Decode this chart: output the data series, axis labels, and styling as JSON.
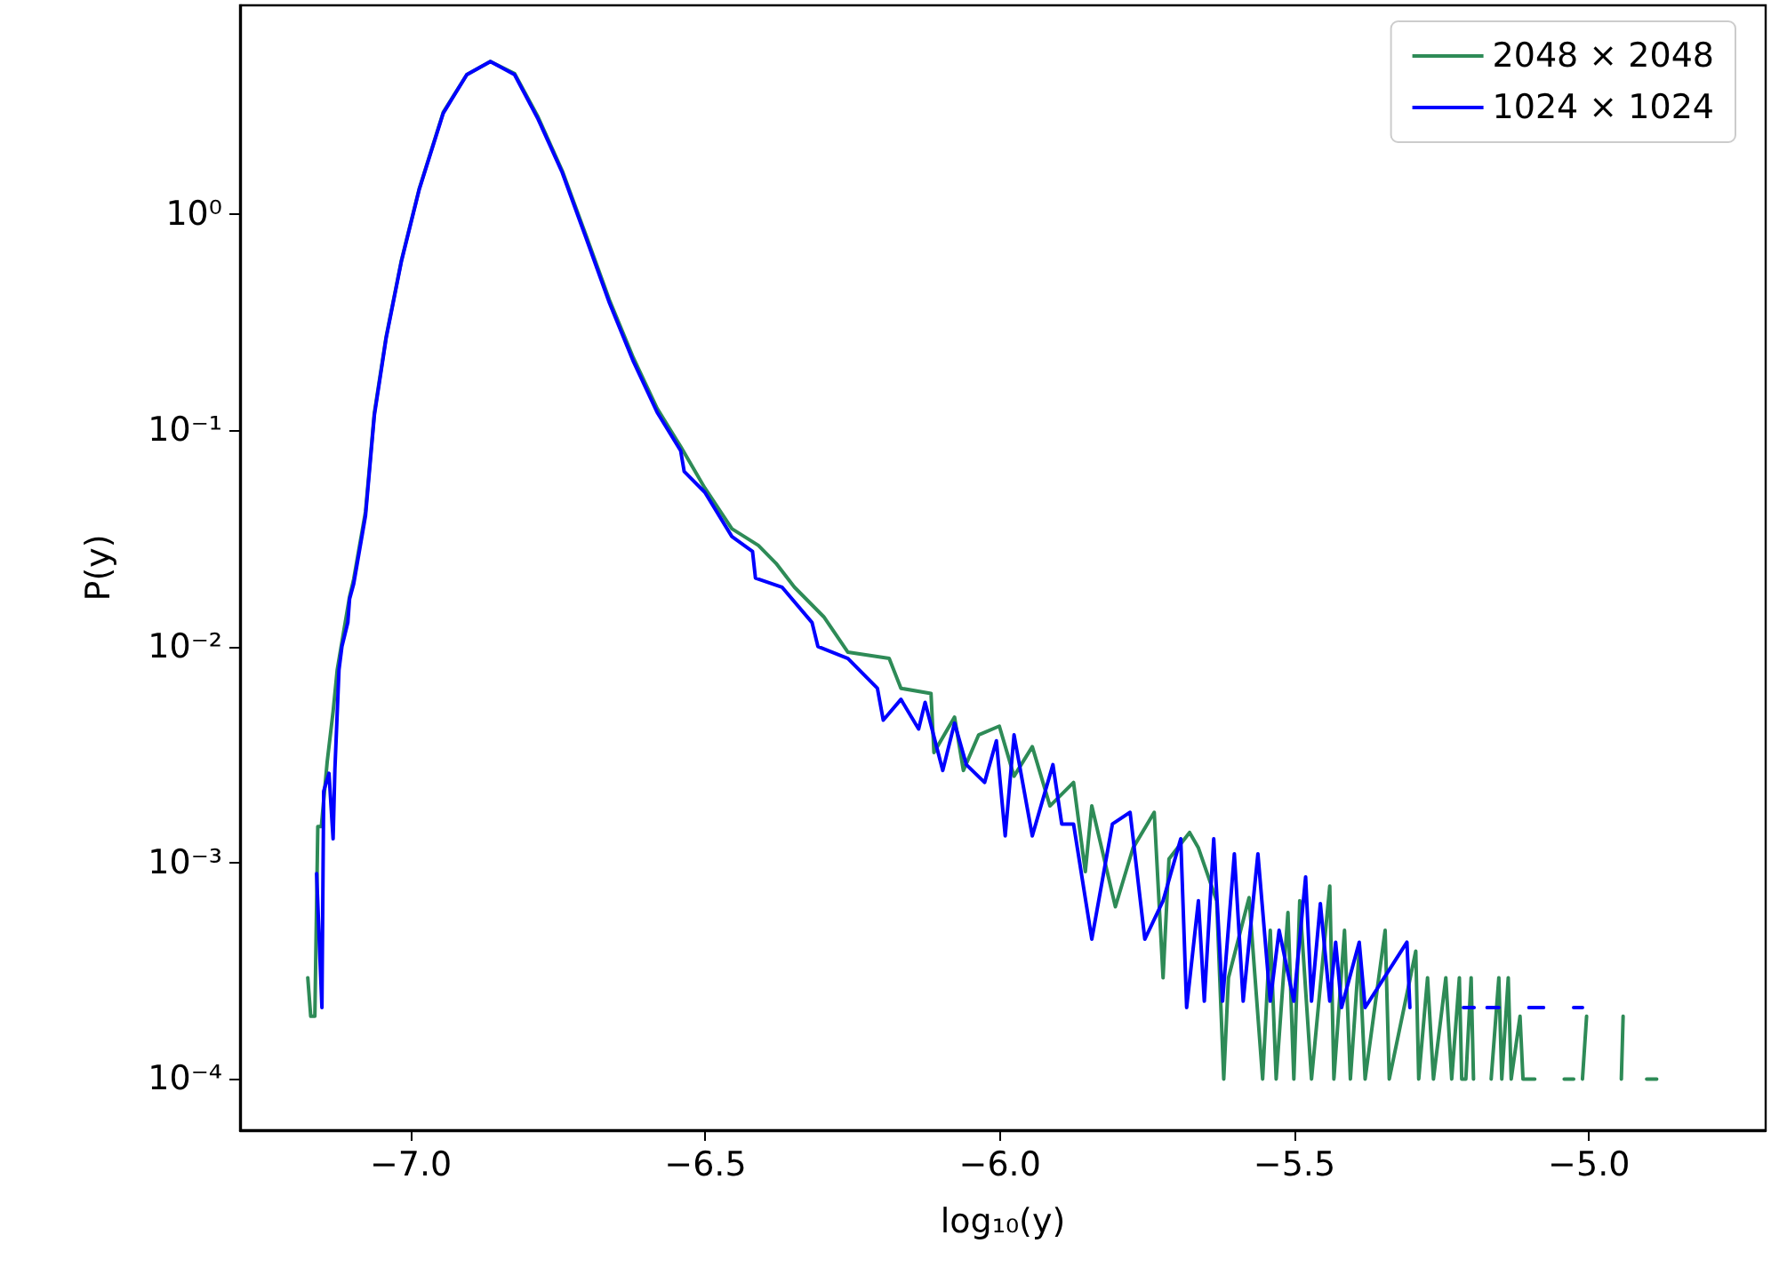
{
  "chart_data": {
    "type": "line",
    "xlabel": "log₁₀(y)",
    "ylabel": "P(y)",
    "log": "y",
    "grid": false,
    "legend": "top right",
    "marker": "none",
    "line_style": "solid",
    "xlim": [
      -7.29,
      -4.7
    ],
    "xticks": [
      {
        "value": -7,
        "label": "−7.0"
      },
      {
        "value": -6.5,
        "label": "−6.5"
      },
      {
        "value": -6,
        "label": "−6.0"
      },
      {
        "value": -5.5,
        "label": "−5.5"
      },
      {
        "value": -5,
        "label": "−5.0"
      }
    ],
    "ylim": [
      5.8e-05,
      9.2
    ],
    "yticks": [
      {
        "value": 0.0001,
        "label": "10⁻⁴"
      },
      {
        "value": 0.001,
        "label": "10⁻³"
      },
      {
        "value": 0.01,
        "label": "10⁻²"
      },
      {
        "value": 0.1,
        "label": "10⁻¹"
      },
      {
        "value": 1,
        "label": "10⁰"
      }
    ],
    "series": [
      {
        "name": "2048 × 2048",
        "color": "#2e8b57",
        "x": [
          -7.175,
          -7.17,
          -7.163,
          -7.158,
          -7.152,
          -7.142,
          -7.132,
          -7.125,
          -7.117,
          -7.104,
          -7.097,
          -7.077,
          -7.062,
          -7.042,
          -7.016,
          -6.986,
          -6.945,
          -6.905,
          -6.865,
          -6.824,
          -6.784,
          -6.743,
          -6.703,
          -6.663,
          -6.622,
          -6.582,
          -6.542,
          -6.501,
          -6.455,
          -6.41,
          -6.38,
          -6.349,
          -6.299,
          -6.258,
          -6.188,
          -6.168,
          -6.117,
          -6.112,
          -6.077,
          -6.062,
          -6.036,
          -6.001,
          -5.976,
          -5.945,
          -5.915,
          -5.875,
          -5.855,
          -5.844,
          -5.804,
          -5.774,
          -5.738,
          -5.723,
          -5.713,
          -5.678,
          -5.663,
          -5.632,
          -5.62,
          -5.612,
          -5.577,
          -5.554,
          -5.541,
          -5.531,
          -5.511,
          -5.501,
          -5.491,
          -5.471,
          -5.44,
          -5.433,
          -5.415,
          -5.405,
          -5.39,
          -5.38,
          -5.346,
          -5.339,
          -5.294,
          -5.289,
          -5.274,
          -5.264,
          -5.243,
          -5.233,
          -5.22,
          -5.216,
          -5.209,
          -5.2,
          -5.196,
          -5.18,
          -5.166,
          -5.153,
          -5.148,
          -5.137,
          -5.132,
          -5.117,
          -5.112,
          -5.092,
          -5.06,
          -5.042,
          -5.026,
          -5.018,
          -5.011,
          -5.004,
          -4.97,
          -4.945,
          -4.942,
          -4.92,
          -4.902,
          -4.885
        ],
        "values": [
          0.000294,
          0.000195,
          0.000195,
          0.00147,
          0.00147,
          0.00294,
          0.005,
          0.0078,
          0.0105,
          0.017,
          0.0205,
          0.042,
          0.12,
          0.27,
          0.61,
          1.3,
          2.95,
          4.4,
          5.06,
          4.45,
          2.8,
          1.58,
          0.8,
          0.4,
          0.215,
          0.126,
          0.084,
          0.054,
          0.035,
          0.0293,
          0.0242,
          0.0188,
          0.0137,
          0.0094,
          0.0088,
          0.0064,
          0.00606,
          0.00323,
          0.00471,
          0.00267,
          0.0039,
          0.00428,
          0.00251,
          0.00344,
          0.00183,
          0.00235,
          0.00091,
          0.00183,
          0.000626,
          0.00117,
          0.00171,
          0.000294,
          0.00104,
          0.00138,
          0.00117,
          0.000667,
          0.0001,
          0.000294,
          0.00069,
          0.0001,
          0.000487,
          0.0001,
          0.000588,
          0.0001,
          0.000667,
          0.0001,
          0.00078,
          0.0001,
          0.000487,
          0.0001,
          0.00039,
          0.0001,
          0.000487,
          0.0001,
          0.00039,
          0.0001,
          0.000294,
          0.0001,
          0.000294,
          0.0001,
          0.000294,
          0.0001,
          0.0001,
          0.000294,
          0.0001,
          null,
          0.0001,
          0.000294,
          0.0001,
          0.000294,
          0.0001,
          0.000195,
          0.0001,
          0.0001,
          null,
          0.0001,
          0.0001,
          null,
          0.0001,
          0.000195,
          null,
          0.0001,
          0.000195,
          null,
          0.0001,
          0.0001
        ]
      },
      {
        "name": "1024 × 1024",
        "color": "#0000ff",
        "x": [
          -7.16,
          -7.151,
          -7.148,
          -7.139,
          -7.132,
          -7.129,
          -7.122,
          -7.117,
          -7.107,
          -7.104,
          -7.097,
          -7.077,
          -7.062,
          -7.042,
          -7.016,
          -6.986,
          -6.945,
          -6.905,
          -6.865,
          -6.824,
          -6.784,
          -6.743,
          -6.703,
          -6.663,
          -6.622,
          -6.582,
          -6.542,
          -6.536,
          -6.501,
          -6.455,
          -6.42,
          -6.415,
          -6.37,
          -6.319,
          -6.309,
          -6.258,
          -6.208,
          -6.198,
          -6.168,
          -6.138,
          -6.127,
          -6.097,
          -6.077,
          -6.057,
          -6.026,
          -6.006,
          -5.991,
          -5.976,
          -5.945,
          -5.91,
          -5.895,
          -5.875,
          -5.844,
          -5.809,
          -5.779,
          -5.754,
          -5.723,
          -5.693,
          -5.683,
          -5.663,
          -5.653,
          -5.637,
          -5.622,
          -5.602,
          -5.587,
          -5.562,
          -5.541,
          -5.526,
          -5.501,
          -5.481,
          -5.471,
          -5.456,
          -5.44,
          -5.43,
          -5.42,
          -5.39,
          -5.38,
          -5.309,
          -5.304,
          -5.25,
          -5.213,
          -5.195,
          -5.185,
          -5.173,
          -5.153,
          -5.13,
          -5.102,
          -5.077,
          -5.05,
          -5.026,
          -5.011
        ],
        "values": [
          0.00089,
          0.000214,
          0.00214,
          0.00259,
          0.00129,
          0.00269,
          0.0078,
          0.01,
          0.0129,
          0.0166,
          0.0195,
          0.0402,
          0.117,
          0.266,
          0.604,
          1.29,
          2.92,
          4.4,
          5.06,
          4.4,
          2.74,
          1.55,
          0.778,
          0.388,
          0.207,
          0.121,
          0.0803,
          0.0644,
          0.0516,
          0.0322,
          0.0275,
          0.0207,
          0.0188,
          0.0129,
          0.01,
          0.0088,
          0.0064,
          0.00456,
          0.00569,
          0.00415,
          0.00551,
          0.00267,
          0.00442,
          0.00284,
          0.00235,
          0.00366,
          0.00133,
          0.0039,
          0.00133,
          0.00284,
          0.00151,
          0.00151,
          0.000443,
          0.00151,
          0.00171,
          0.000443,
          0.000667,
          0.00129,
          0.000214,
          0.000667,
          0.000229,
          0.00129,
          0.000229,
          0.0011,
          0.000229,
          0.0011,
          0.000229,
          0.000487,
          0.000229,
          0.00086,
          0.000229,
          0.000647,
          0.000229,
          0.000429,
          0.000214,
          0.000429,
          0.000214,
          0.000429,
          0.000214,
          null,
          0.000214,
          0.000214,
          null,
          0.000214,
          0.000214,
          null,
          0.000214,
          0.000214,
          null,
          0.000214,
          0.000214
        ]
      }
    ]
  }
}
